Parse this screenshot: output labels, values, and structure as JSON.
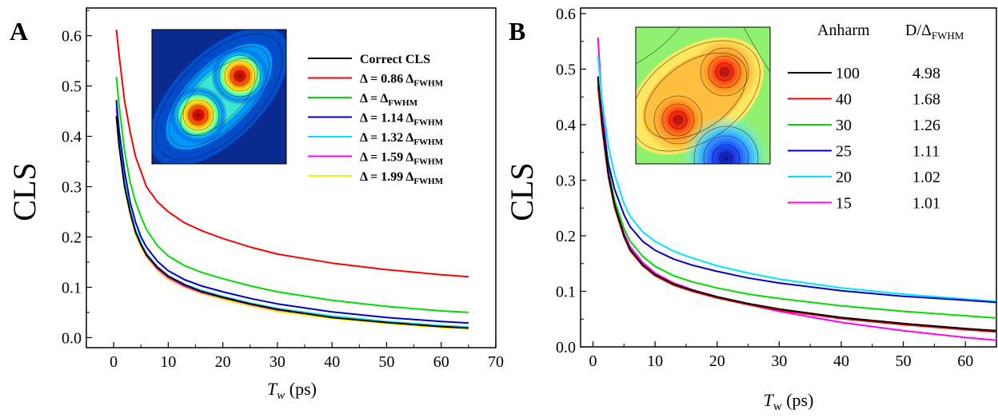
{
  "chart_data": [
    {
      "panel": "A",
      "type": "line",
      "xlabel": {
        "main": "T",
        "sub": "w",
        "rest": " (ps)"
      },
      "ylabel": "CLS",
      "xlim": [
        -5,
        70
      ],
      "ylim": [
        -0.02,
        0.655
      ],
      "xticks": [
        0,
        10,
        20,
        30,
        40,
        50,
        60,
        70
      ],
      "yticks": [
        0.0,
        0.1,
        0.2,
        0.3,
        0.4,
        0.5,
        0.6
      ],
      "legend": "top-right",
      "series": [
        {
          "name": "Correct CLS",
          "legend_text": "Correct CLS",
          "color": "#000000",
          "x": [
            0.5,
            1,
            2,
            3,
            4,
            5,
            6,
            8,
            10,
            13,
            16,
            20,
            25,
            30,
            40,
            50,
            60,
            65
          ],
          "y": [
            0.44,
            0.38,
            0.3,
            0.25,
            0.21,
            0.185,
            0.165,
            0.14,
            0.122,
            0.105,
            0.092,
            0.08,
            0.067,
            0.056,
            0.04,
            0.03,
            0.022,
            0.019
          ]
        },
        {
          "name": "Δ = 0.86 ΔFWHM",
          "legend_text": "Δ = 0.86 Δ",
          "legend_sub": "FWHM",
          "color": "#ff0000",
          "x": [
            0.5,
            1,
            2,
            3,
            4,
            5,
            6,
            8,
            10,
            13,
            16,
            20,
            25,
            30,
            40,
            50,
            60,
            65
          ],
          "y": [
            0.612,
            0.56,
            0.47,
            0.41,
            0.36,
            0.33,
            0.3,
            0.27,
            0.25,
            0.228,
            0.213,
            0.197,
            0.18,
            0.166,
            0.148,
            0.135,
            0.125,
            0.121
          ]
        },
        {
          "name": "Δ = ΔFWHM",
          "legend_text": "Δ = Δ",
          "legend_sub": "FWHM",
          "color": "#00dd00",
          "x": [
            0.5,
            1,
            2,
            3,
            4,
            5,
            6,
            8,
            10,
            13,
            16,
            20,
            25,
            30,
            40,
            50,
            60,
            65
          ],
          "y": [
            0.518,
            0.46,
            0.37,
            0.31,
            0.27,
            0.24,
            0.215,
            0.183,
            0.162,
            0.143,
            0.13,
            0.117,
            0.103,
            0.091,
            0.074,
            0.062,
            0.053,
            0.05
          ]
        },
        {
          "name": "Δ = 1.14 ΔFWHM",
          "legend_text": "Δ = 1.14 Δ",
          "legend_sub": "FWHM",
          "color": "#0000cc",
          "x": [
            0.5,
            1,
            2,
            3,
            4,
            5,
            6,
            8,
            10,
            13,
            16,
            20,
            25,
            30,
            40,
            50,
            60,
            65
          ],
          "y": [
            0.472,
            0.41,
            0.33,
            0.27,
            0.23,
            0.2,
            0.18,
            0.152,
            0.133,
            0.115,
            0.103,
            0.091,
            0.078,
            0.067,
            0.051,
            0.04,
            0.032,
            0.029
          ]
        },
        {
          "name": "Δ = 1.32 ΔFWHM",
          "legend_text": "Δ = 1.32 Δ",
          "legend_sub": "FWHM",
          "color": "#00e5ff",
          "x": [
            0.5,
            1,
            2,
            3,
            4,
            5,
            6,
            8,
            10,
            13,
            16,
            20,
            25,
            30,
            40,
            50,
            60,
            65
          ],
          "y": [
            0.465,
            0.4,
            0.31,
            0.255,
            0.215,
            0.188,
            0.167,
            0.141,
            0.123,
            0.106,
            0.094,
            0.082,
            0.069,
            0.058,
            0.043,
            0.032,
            0.024,
            0.021
          ]
        },
        {
          "name": "Δ = 1.59 ΔFWHM",
          "legend_text": "Δ = 1.59 Δ",
          "legend_sub": "FWHM",
          "color": "#ff00ff",
          "x": [
            0.5,
            1,
            2,
            3,
            4,
            5,
            6,
            8,
            10,
            13,
            16,
            20,
            25,
            30,
            40,
            50,
            60,
            65
          ],
          "y": [
            0.455,
            0.39,
            0.305,
            0.25,
            0.21,
            0.184,
            0.163,
            0.137,
            0.119,
            0.102,
            0.09,
            0.079,
            0.066,
            0.055,
            0.041,
            0.03,
            0.022,
            0.019
          ]
        },
        {
          "name": "Δ = 1.99 ΔFWHM",
          "legend_text": "Δ = 1.99 Δ",
          "legend_sub": "FWHM",
          "color": "#ffee00",
          "x": [
            0.5,
            1,
            2,
            3,
            4,
            5,
            6,
            8,
            10,
            13,
            16,
            20,
            25,
            30,
            40,
            50,
            60,
            65
          ],
          "y": [
            0.44,
            0.38,
            0.298,
            0.245,
            0.206,
            0.18,
            0.16,
            0.134,
            0.116,
            0.1,
            0.088,
            0.076,
            0.063,
            0.052,
            0.038,
            0.028,
            0.02,
            0.017
          ]
        }
      ]
    },
    {
      "panel": "B",
      "type": "line",
      "xlabel": {
        "main": "T",
        "sub": "w",
        "rest": " (ps)"
      },
      "ylabel": "CLS",
      "xlim": [
        -2,
        65
      ],
      "ylim": [
        0.0,
        0.61
      ],
      "xticks": [
        0,
        10,
        20,
        30,
        40,
        50,
        60
      ],
      "yticks": [
        0.0,
        0.1,
        0.2,
        0.3,
        0.4,
        0.5,
        0.6
      ],
      "legend": "top-right",
      "legend_header": {
        "col1": "Anharm",
        "col2": "D/Δ",
        "col2_sub": "FWHM"
      },
      "series": [
        {
          "anharm": "100",
          "ratio": "4.98",
          "color": "#000000",
          "x": [
            0.8,
            1.5,
            2.5,
            3.5,
            5,
            6,
            8,
            10,
            13,
            16,
            20,
            25,
            30,
            40,
            50,
            60,
            65
          ],
          "y": [
            0.487,
            0.4,
            0.31,
            0.255,
            0.2,
            0.175,
            0.148,
            0.13,
            0.113,
            0.102,
            0.09,
            0.078,
            0.068,
            0.053,
            0.042,
            0.033,
            0.029
          ]
        },
        {
          "anharm": "40",
          "ratio": "1.68",
          "color": "#ff0000",
          "x": [
            0.8,
            1.5,
            2.5,
            3.5,
            5,
            6,
            8,
            10,
            13,
            16,
            20,
            25,
            30,
            40,
            50,
            60,
            65
          ],
          "y": [
            0.47,
            0.39,
            0.305,
            0.25,
            0.198,
            0.173,
            0.146,
            0.128,
            0.111,
            0.1,
            0.088,
            0.076,
            0.066,
            0.051,
            0.04,
            0.031,
            0.027
          ]
        },
        {
          "anharm": "30",
          "ratio": "1.26",
          "color": "#00dd00",
          "x": [
            0.8,
            1.5,
            2.5,
            3.5,
            5,
            6,
            8,
            10,
            13,
            16,
            20,
            25,
            30,
            40,
            50,
            60,
            65
          ],
          "y": [
            0.475,
            0.395,
            0.315,
            0.263,
            0.213,
            0.19,
            0.163,
            0.145,
            0.128,
            0.117,
            0.106,
            0.095,
            0.087,
            0.074,
            0.064,
            0.056,
            0.052
          ]
        },
        {
          "anharm": "25",
          "ratio": "1.11",
          "color": "#0000cc",
          "x": [
            0.8,
            1.5,
            2.5,
            3.5,
            5,
            6,
            8,
            10,
            13,
            16,
            20,
            25,
            30,
            40,
            50,
            60,
            65
          ],
          "y": [
            0.48,
            0.405,
            0.33,
            0.283,
            0.238,
            0.216,
            0.19,
            0.174,
            0.158,
            0.147,
            0.136,
            0.124,
            0.115,
            0.101,
            0.091,
            0.084,
            0.08
          ]
        },
        {
          "anharm": "20",
          "ratio": "1.02",
          "color": "#00e5ff",
          "x": [
            0.8,
            1.5,
            2.5,
            3.5,
            5,
            6,
            8,
            10,
            13,
            16,
            20,
            25,
            30,
            40,
            50,
            60,
            65
          ],
          "y": [
            0.525,
            0.44,
            0.36,
            0.31,
            0.258,
            0.235,
            0.207,
            0.19,
            0.172,
            0.16,
            0.146,
            0.133,
            0.122,
            0.106,
            0.095,
            0.086,
            0.082
          ]
        },
        {
          "anharm": "15",
          "ratio": "1.01",
          "color": "#ff00ff",
          "x": [
            0.8,
            1.5,
            2.5,
            3.5,
            5,
            6,
            8,
            10,
            13,
            16,
            20,
            25,
            30,
            40,
            50,
            60,
            65
          ],
          "y": [
            0.557,
            0.43,
            0.32,
            0.26,
            0.205,
            0.18,
            0.152,
            0.133,
            0.115,
            0.103,
            0.09,
            0.076,
            0.064,
            0.044,
            0.029,
            0.017,
            0.012
          ]
        }
      ]
    }
  ]
}
